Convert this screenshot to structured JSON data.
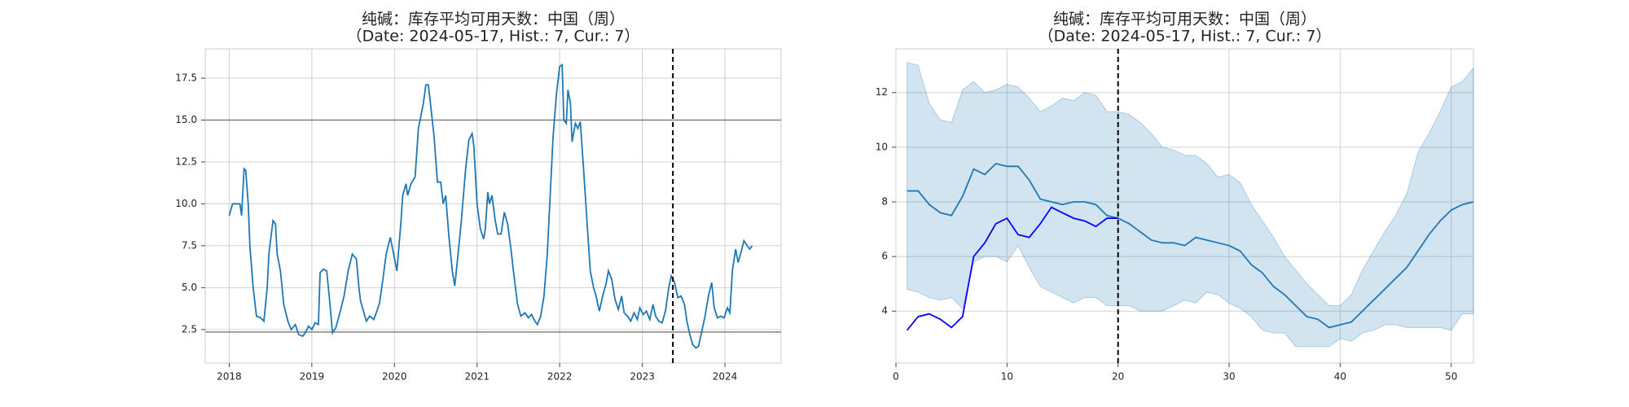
{
  "chart_data": [
    {
      "type": "line",
      "title": "纯碱：库存平均可用天数：中国（周）",
      "subtitle": "（Date: 2024-05-17, Hist.: 7, Cur.: 7）",
      "x": [
        2018.0,
        2018.04,
        2018.13,
        2018.15,
        2018.18,
        2018.2,
        2018.23,
        2018.25,
        2018.29,
        2018.33,
        2018.38,
        2018.42,
        2018.46,
        2018.48,
        2018.53,
        2018.56,
        2018.58,
        2018.62,
        2018.66,
        2018.71,
        2018.75,
        2018.8,
        2018.84,
        2018.89,
        2018.92,
        2018.96,
        2019.0,
        2019.04,
        2019.08,
        2019.1,
        2019.14,
        2019.18,
        2019.22,
        2019.25,
        2019.29,
        2019.34,
        2019.39,
        2019.44,
        2019.49,
        2019.54,
        2019.57,
        2019.59,
        2019.63,
        2019.66,
        2019.7,
        2019.75,
        2019.78,
        2019.82,
        2019.86,
        2019.9,
        2019.95,
        2019.99,
        2020.03,
        2020.08,
        2020.1,
        2020.14,
        2020.16,
        2020.2,
        2020.25,
        2020.29,
        2020.33,
        2020.35,
        2020.38,
        2020.41,
        2020.44,
        2020.48,
        2020.52,
        2020.56,
        2020.59,
        2020.62,
        2020.66,
        2020.7,
        2020.73,
        2020.77,
        2020.81,
        2020.86,
        2020.9,
        2020.94,
        2020.96,
        2021.0,
        2021.04,
        2021.08,
        2021.1,
        2021.13,
        2021.15,
        2021.18,
        2021.22,
        2021.25,
        2021.29,
        2021.33,
        2021.37,
        2021.41,
        2021.44,
        2021.49,
        2021.53,
        2021.58,
        2021.62,
        2021.66,
        2021.7,
        2021.73,
        2021.77,
        2021.81,
        2021.85,
        2021.89,
        2021.92,
        2021.96,
        2022.0,
        2022.03,
        2022.05,
        2022.08,
        2022.1,
        2022.13,
        2022.15,
        2022.19,
        2022.22,
        2022.25,
        2022.29,
        2022.33,
        2022.37,
        2022.41,
        2022.44,
        2022.48,
        2022.52,
        2022.56,
        2022.59,
        2022.63,
        2022.67,
        2022.71,
        2022.75,
        2022.78,
        2022.82,
        2022.86,
        2022.9,
        2022.94,
        2022.97,
        2023.01,
        2023.05,
        2023.09,
        2023.13,
        2023.16,
        2023.2,
        2023.24,
        2023.28,
        2023.32,
        2023.35,
        2023.39,
        2023.43,
        2023.47,
        2023.51,
        2023.54,
        2023.57,
        2023.61,
        2023.65,
        2023.68,
        2023.72,
        2023.76,
        2023.8,
        2023.84,
        2023.87,
        2023.91,
        2023.95,
        2023.99,
        2024.03,
        2024.06,
        2024.09,
        2024.13,
        2024.16,
        2024.2,
        2024.23,
        2024.27,
        2024.3,
        2024.33
      ],
      "series": [
        {
          "color": "#1f77b4",
          "values": [
            9.3,
            10,
            10,
            9.3,
            12.1,
            12,
            10,
            7.5,
            5,
            3.3,
            3.2,
            3,
            5,
            7,
            9,
            8.8,
            7,
            6,
            4,
            3,
            2.5,
            2.8,
            2.2,
            2.1,
            2.3,
            2.7,
            2.5,
            2.9,
            2.8,
            5.9,
            6.1,
            6,
            4,
            2.3,
            2.6,
            3.5,
            4.5,
            6,
            7,
            6.7,
            5,
            4.2,
            3.5,
            3,
            3.3,
            3.1,
            3.5,
            4.1,
            5.5,
            7,
            8,
            7,
            6,
            9,
            10.5,
            11.2,
            10.5,
            11.2,
            11.6,
            14.5,
            15.5,
            16,
            17.1,
            17.1,
            15.8,
            14,
            11.3,
            11.3,
            10,
            10.5,
            8,
            6,
            5.1,
            7,
            9,
            12,
            13.8,
            14.2,
            13.5,
            10,
            8.5,
            7.9,
            8.5,
            10.7,
            10,
            10.5,
            9,
            8.2,
            8.2,
            9.5,
            8.8,
            7.3,
            6,
            4,
            3.3,
            3.5,
            3.2,
            3.4,
            3,
            2.8,
            3.3,
            4.5,
            7,
            11,
            14,
            16.5,
            18.2,
            18.3,
            15,
            14.8,
            16.8,
            16,
            13.7,
            14.8,
            14.5,
            14.9,
            12,
            9,
            6,
            5,
            4.5,
            3.6,
            4.5,
            5.2,
            6,
            5.5,
            4.3,
            3.7,
            4.5,
            3.5,
            3.3,
            3,
            3.5,
            3.1,
            3.8,
            3.4,
            3.6,
            3.1,
            4,
            3.3,
            3,
            2.9,
            3.6,
            5,
            5.7,
            5.3,
            4.4,
            4.5,
            4,
            3,
            2.3,
            1.6,
            1.4,
            1.5,
            2.4,
            3.3,
            4.5,
            5.3,
            3.8,
            3.2,
            3.3,
            3.2,
            3.8,
            3.5,
            6,
            7.3,
            6.5,
            7.2,
            7.8,
            7.5,
            7.3,
            7.5
          ]
        }
      ],
      "xlim": [
        2017.71,
        2024.68
      ],
      "xticks": [
        2018,
        2019,
        2020,
        2021,
        2022,
        2023,
        2024
      ],
      "ylim": [
        0.5,
        19.25
      ],
      "yticks": [
        2.5,
        {
          "value": 5,
          "label": "5.0"
        },
        7.5,
        {
          "value": 10,
          "label": "10.0"
        },
        12.5,
        {
          "value": 15,
          "label": "15.0"
        },
        17.5
      ],
      "hlines": [
        15,
        2.35
      ],
      "hline_color": "#808080",
      "vline": 2023.37,
      "grid": true
    },
    {
      "type": "line",
      "title": "纯碱：库存平均可用天数：中国（周）",
      "subtitle": "（Date: 2024-05-17, Hist.: 7, Cur.: 7）",
      "x": [
        1,
        2,
        3,
        4,
        5,
        6,
        7,
        8,
        9,
        10,
        11,
        12,
        13,
        14,
        15,
        16,
        17,
        18,
        19,
        20,
        21,
        22,
        23,
        24,
        25,
        26,
        27,
        28,
        29,
        30,
        31,
        32,
        33,
        34,
        35,
        36,
        37,
        38,
        39,
        40,
        41,
        42,
        43,
        44,
        45,
        46,
        47,
        48,
        49,
        50,
        51,
        52
      ],
      "band_upper": [
        13.1,
        13.0,
        11.6,
        11.0,
        10.9,
        12.1,
        12.4,
        12.0,
        12.1,
        12.3,
        12.2,
        11.8,
        11.3,
        11.5,
        11.8,
        11.7,
        12.0,
        11.9,
        11.3,
        11.3,
        11.2,
        10.9,
        10.5,
        10.0,
        9.9,
        9.7,
        9.7,
        9.4,
        8.9,
        9.0,
        8.7,
        7.9,
        7.3,
        6.7,
        6.0,
        5.5,
        5.0,
        4.6,
        4.2,
        4.2,
        4.6,
        5.5,
        6.2,
        6.9,
        7.5,
        8.3,
        9.8,
        10.5,
        11.3,
        12.2,
        12.4,
        12.9
      ],
      "band_lower": [
        4.8,
        4.7,
        4.5,
        4.4,
        4.5,
        4.1,
        5.8,
        6.0,
        6.0,
        5.8,
        6.4,
        5.6,
        4.9,
        4.7,
        4.5,
        4.3,
        4.5,
        4.5,
        4.2,
        4.2,
        4.2,
        4.0,
        4.0,
        4.0,
        4.2,
        4.4,
        4.3,
        4.7,
        4.6,
        4.3,
        4.1,
        3.8,
        3.3,
        3.2,
        3.2,
        2.7,
        2.7,
        2.7,
        2.7,
        3.0,
        2.9,
        3.2,
        3.3,
        3.5,
        3.5,
        3.4,
        3.4,
        3.4,
        3.4,
        3.3,
        3.9,
        3.9
      ],
      "band_color": "#1f77b4",
      "series": [
        {
          "color": "#1f77b4",
          "values": [
            8.4,
            8.4,
            7.9,
            7.6,
            7.5,
            8.2,
            9.2,
            9.0,
            9.4,
            9.3,
            9.3,
            8.8,
            8.1,
            8.0,
            7.9,
            8.0,
            8.0,
            7.9,
            7.5,
            7.4,
            7.2,
            6.9,
            6.6,
            6.5,
            6.5,
            6.4,
            6.7,
            6.6,
            6.5,
            6.4,
            6.2,
            5.7,
            5.4,
            4.9,
            4.6,
            4.2,
            3.8,
            3.7,
            3.4,
            3.5,
            3.6,
            4.0,
            4.4,
            4.8,
            5.2,
            5.6,
            6.2,
            6.8,
            7.3,
            7.7,
            7.9,
            8.0
          ]
        },
        {
          "color": "#0000ff",
          "values": [
            3.3,
            3.8,
            3.9,
            3.7,
            3.4,
            3.8,
            6.0,
            6.5,
            7.2,
            7.4,
            6.8,
            6.7,
            7.2,
            7.8,
            7.6,
            7.4,
            7.3,
            7.1,
            7.4,
            7.4,
            null,
            null,
            null,
            null,
            null,
            null,
            null,
            null,
            null,
            null,
            null,
            null,
            null,
            null,
            null,
            null,
            null,
            null,
            null,
            null,
            null,
            null,
            null,
            null,
            null,
            null,
            null,
            null,
            null,
            null,
            null,
            null
          ]
        }
      ],
      "xlim": [
        0,
        52
      ],
      "xticks": [
        0,
        10,
        20,
        30,
        40,
        50
      ],
      "ylim": [
        2.1,
        13.6
      ],
      "yticks": [
        4,
        6,
        8,
        10,
        12
      ],
      "vline": 20,
      "grid": true
    }
  ]
}
